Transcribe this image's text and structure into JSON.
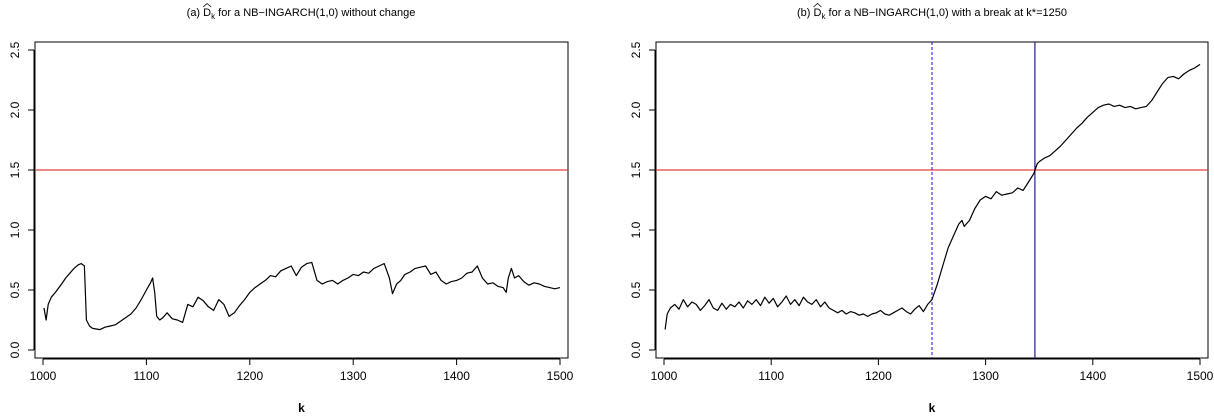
{
  "chart_data": [
    {
      "type": "line",
      "title_prefix": "(a)",
      "title_suffix": "for a NB−INGARCH(1,0) without change",
      "title_symbol": "D",
      "title_symbol_sub": "k",
      "xlabel": "k",
      "ylabel": "",
      "xlim": [
        1000,
        1500
      ],
      "ylim": [
        0.0,
        2.5
      ],
      "x_ticks": [
        1000,
        1100,
        1200,
        1300,
        1400,
        1500
      ],
      "y_ticks": [
        0.0,
        0.5,
        1.0,
        1.5,
        2.0,
        2.5
      ],
      "x_tick_labels": [
        "1000",
        "1100",
        "1200",
        "1300",
        "1400",
        "1500"
      ],
      "y_tick_labels": [
        "0.0",
        "0.5",
        "1.0",
        "1.5",
        "2.0",
        "2.5"
      ],
      "hlines": [
        {
          "y": 1.5,
          "color": "#e8403a"
        }
      ],
      "vlines": [],
      "series": [
        {
          "color": "#000000",
          "x": [
            1001,
            1003,
            1005,
            1008,
            1012,
            1018,
            1022,
            1026,
            1030,
            1034,
            1037,
            1040,
            1042,
            1045,
            1048,
            1055,
            1060,
            1065,
            1070,
            1075,
            1080,
            1085,
            1090,
            1095,
            1100,
            1104,
            1106,
            1108,
            1110,
            1113,
            1116,
            1120,
            1125,
            1130,
            1135,
            1140,
            1145,
            1150,
            1155,
            1160,
            1165,
            1170,
            1175,
            1180,
            1185,
            1190,
            1195,
            1200,
            1205,
            1210,
            1215,
            1220,
            1225,
            1230,
            1235,
            1240,
            1245,
            1250,
            1255,
            1260,
            1265,
            1270,
            1275,
            1280,
            1285,
            1290,
            1295,
            1300,
            1305,
            1310,
            1315,
            1320,
            1325,
            1330,
            1335,
            1338,
            1342,
            1346,
            1350,
            1355,
            1360,
            1365,
            1370,
            1375,
            1380,
            1385,
            1390,
            1395,
            1400,
            1405,
            1410,
            1415,
            1420,
            1425,
            1430,
            1435,
            1440,
            1445,
            1448,
            1450,
            1453,
            1456,
            1460,
            1465,
            1470,
            1475,
            1480,
            1485,
            1490,
            1495,
            1500
          ],
          "y": [
            0.35,
            0.25,
            0.38,
            0.44,
            0.48,
            0.55,
            0.6,
            0.64,
            0.68,
            0.71,
            0.72,
            0.7,
            0.25,
            0.2,
            0.18,
            0.17,
            0.19,
            0.2,
            0.21,
            0.24,
            0.27,
            0.3,
            0.35,
            0.42,
            0.5,
            0.56,
            0.6,
            0.48,
            0.28,
            0.25,
            0.27,
            0.31,
            0.26,
            0.25,
            0.23,
            0.38,
            0.36,
            0.44,
            0.41,
            0.36,
            0.33,
            0.42,
            0.38,
            0.28,
            0.31,
            0.37,
            0.42,
            0.48,
            0.52,
            0.55,
            0.58,
            0.62,
            0.61,
            0.66,
            0.68,
            0.7,
            0.62,
            0.69,
            0.72,
            0.73,
            0.58,
            0.55,
            0.57,
            0.58,
            0.55,
            0.58,
            0.6,
            0.63,
            0.62,
            0.65,
            0.64,
            0.68,
            0.7,
            0.72,
            0.6,
            0.47,
            0.55,
            0.58,
            0.63,
            0.65,
            0.68,
            0.69,
            0.7,
            0.63,
            0.65,
            0.58,
            0.55,
            0.57,
            0.58,
            0.6,
            0.64,
            0.65,
            0.7,
            0.6,
            0.55,
            0.56,
            0.53,
            0.52,
            0.48,
            0.6,
            0.68,
            0.6,
            0.62,
            0.57,
            0.54,
            0.56,
            0.55,
            0.53,
            0.52,
            0.51,
            0.52
          ]
        }
      ]
    },
    {
      "type": "line",
      "title_prefix": "(b)",
      "title_suffix": "for a NB−INGARCH(1,0) with a break at k*=1250",
      "title_symbol": "D",
      "title_symbol_sub": "k",
      "xlabel": "k",
      "ylabel": "",
      "xlim": [
        1000,
        1500
      ],
      "ylim": [
        0.0,
        2.5
      ],
      "x_ticks": [
        1000,
        1100,
        1200,
        1300,
        1400,
        1500
      ],
      "y_ticks": [
        0.0,
        0.5,
        1.0,
        1.5,
        2.0,
        2.5
      ],
      "x_tick_labels": [
        "1000",
        "1100",
        "1200",
        "1300",
        "1400",
        "1500"
      ],
      "y_tick_labels": [
        "0.0",
        "0.5",
        "1.0",
        "1.5",
        "2.0",
        "2.5"
      ],
      "hlines": [
        {
          "y": 1.5,
          "color": "#e8403a"
        }
      ],
      "vlines": [
        {
          "x": 1250,
          "color": "#3a3ad8",
          "style": "dotted"
        },
        {
          "x": 1346,
          "color": "#1f1f8f",
          "style": "solid"
        }
      ],
      "series": [
        {
          "color": "#000000",
          "x": [
            1001,
            1003,
            1006,
            1010,
            1014,
            1018,
            1022,
            1026,
            1030,
            1034,
            1038,
            1042,
            1046,
            1050,
            1054,
            1058,
            1062,
            1066,
            1070,
            1074,
            1078,
            1082,
            1086,
            1090,
            1094,
            1098,
            1102,
            1106,
            1110,
            1114,
            1118,
            1122,
            1126,
            1130,
            1134,
            1138,
            1142,
            1146,
            1150,
            1154,
            1158,
            1162,
            1166,
            1170,
            1174,
            1178,
            1182,
            1186,
            1190,
            1194,
            1198,
            1202,
            1206,
            1210,
            1214,
            1218,
            1222,
            1226,
            1230,
            1234,
            1238,
            1242,
            1246,
            1250,
            1255,
            1260,
            1265,
            1270,
            1275,
            1278,
            1280,
            1285,
            1290,
            1295,
            1300,
            1305,
            1310,
            1315,
            1320,
            1325,
            1330,
            1335,
            1340,
            1345,
            1348,
            1350,
            1355,
            1360,
            1365,
            1370,
            1375,
            1380,
            1385,
            1390,
            1395,
            1400,
            1405,
            1410,
            1415,
            1420,
            1425,
            1430,
            1435,
            1440,
            1445,
            1450,
            1455,
            1460,
            1465,
            1470,
            1475,
            1480,
            1485,
            1490,
            1495,
            1500
          ],
          "y": [
            0.17,
            0.3,
            0.35,
            0.38,
            0.34,
            0.42,
            0.36,
            0.4,
            0.38,
            0.33,
            0.37,
            0.42,
            0.35,
            0.33,
            0.39,
            0.34,
            0.38,
            0.36,
            0.4,
            0.35,
            0.41,
            0.38,
            0.42,
            0.37,
            0.44,
            0.39,
            0.43,
            0.36,
            0.4,
            0.45,
            0.38,
            0.42,
            0.37,
            0.44,
            0.4,
            0.38,
            0.42,
            0.36,
            0.4,
            0.35,
            0.33,
            0.31,
            0.33,
            0.3,
            0.32,
            0.31,
            0.29,
            0.3,
            0.28,
            0.3,
            0.31,
            0.33,
            0.3,
            0.29,
            0.31,
            0.33,
            0.35,
            0.32,
            0.3,
            0.34,
            0.37,
            0.32,
            0.38,
            0.42,
            0.55,
            0.7,
            0.85,
            0.95,
            1.05,
            1.08,
            1.03,
            1.08,
            1.18,
            1.25,
            1.28,
            1.26,
            1.32,
            1.29,
            1.3,
            1.31,
            1.35,
            1.33,
            1.4,
            1.47,
            1.55,
            1.57,
            1.6,
            1.62,
            1.66,
            1.7,
            1.75,
            1.8,
            1.85,
            1.89,
            1.94,
            1.98,
            2.02,
            2.04,
            2.05,
            2.03,
            2.04,
            2.02,
            2.03,
            2.01,
            2.02,
            2.03,
            2.08,
            2.15,
            2.22,
            2.27,
            2.28,
            2.26,
            2.3,
            2.33,
            2.35,
            2.38
          ]
        }
      ]
    }
  ]
}
